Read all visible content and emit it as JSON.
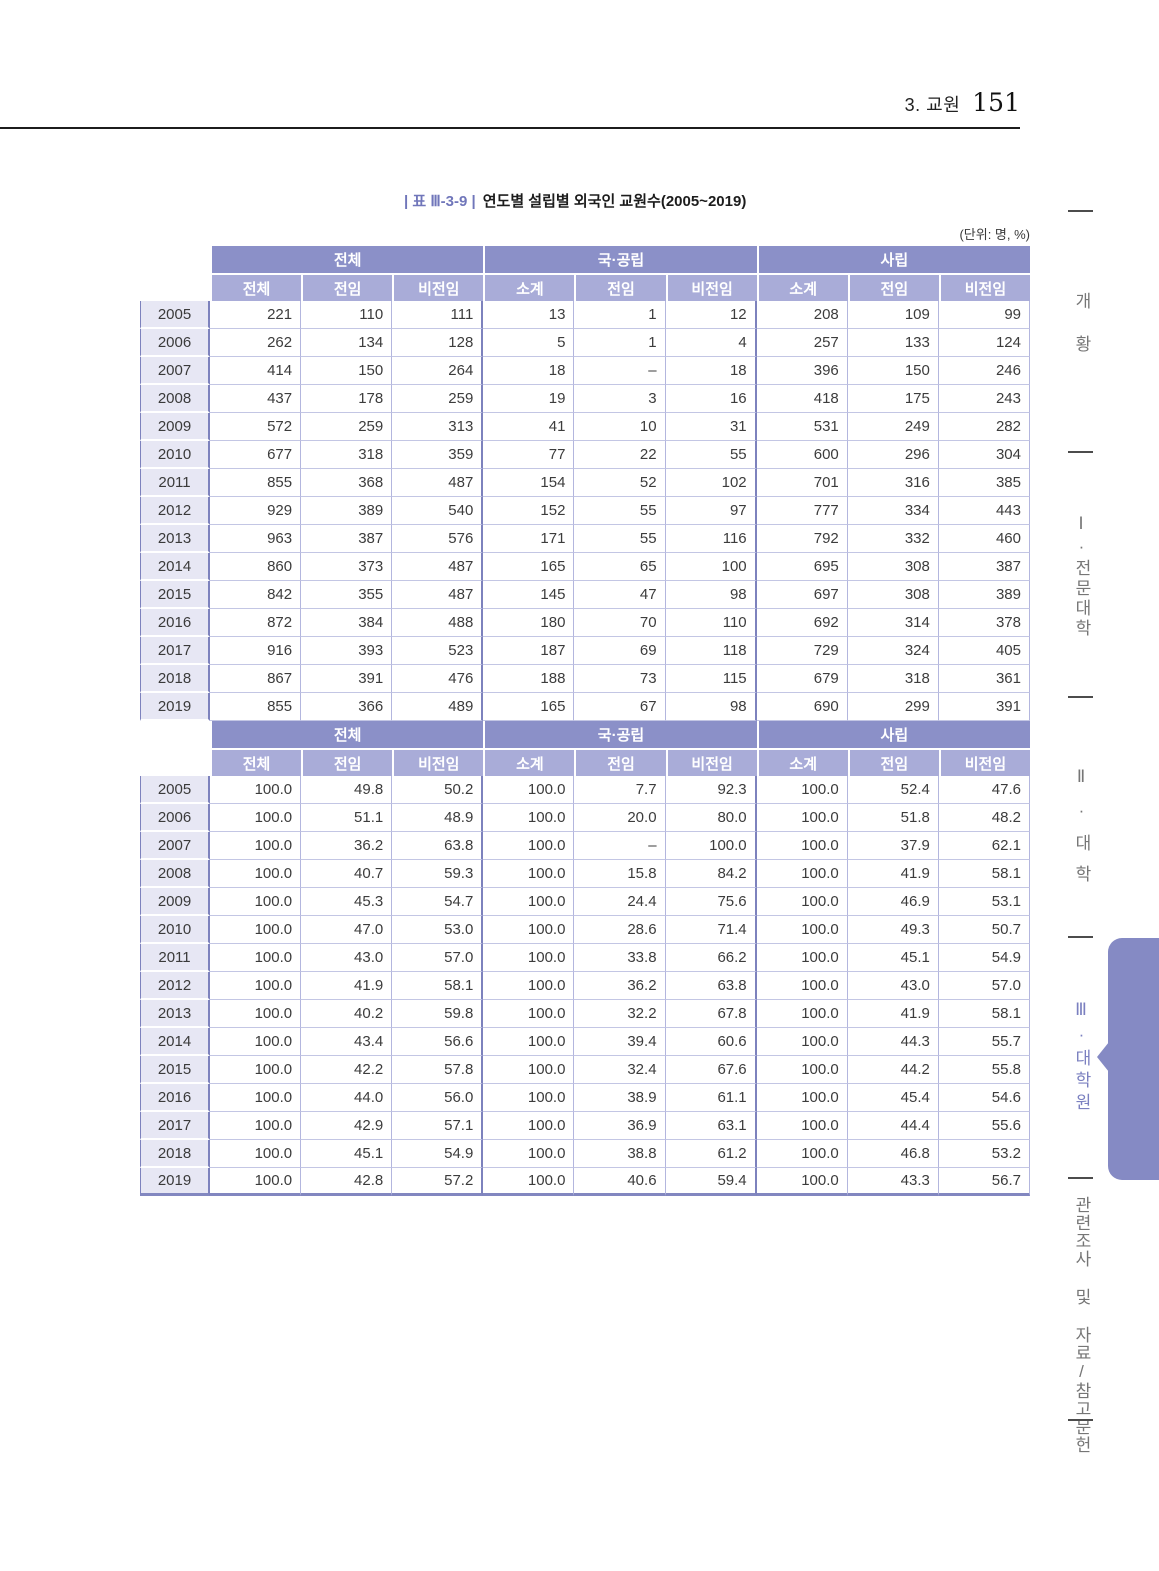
{
  "page_header": {
    "section_label": "3. 교원",
    "page_number": "151"
  },
  "table_caption": {
    "tag": "| 표 Ⅲ-3-9 |",
    "title": "연도별 설립별 외국인 교원수(2005~2019)",
    "unit_note": "(단위: 명, %)"
  },
  "tables": {
    "group_headers": [
      "전체",
      "국·공립",
      "사립"
    ],
    "sub_headers": [
      "전체",
      "전임",
      "비전임",
      "소계",
      "전임",
      "비전임",
      "소계",
      "전임",
      "비전임"
    ],
    "counts": [
      {
        "year": "2005",
        "values": [
          "221",
          "110",
          "111",
          "13",
          "1",
          "12",
          "208",
          "109",
          "99"
        ]
      },
      {
        "year": "2006",
        "values": [
          "262",
          "134",
          "128",
          "5",
          "1",
          "4",
          "257",
          "133",
          "124"
        ]
      },
      {
        "year": "2007",
        "values": [
          "414",
          "150",
          "264",
          "18",
          "–",
          "18",
          "396",
          "150",
          "246"
        ]
      },
      {
        "year": "2008",
        "values": [
          "437",
          "178",
          "259",
          "19",
          "3",
          "16",
          "418",
          "175",
          "243"
        ]
      },
      {
        "year": "2009",
        "values": [
          "572",
          "259",
          "313",
          "41",
          "10",
          "31",
          "531",
          "249",
          "282"
        ]
      },
      {
        "year": "2010",
        "values": [
          "677",
          "318",
          "359",
          "77",
          "22",
          "55",
          "600",
          "296",
          "304"
        ]
      },
      {
        "year": "2011",
        "values": [
          "855",
          "368",
          "487",
          "154",
          "52",
          "102",
          "701",
          "316",
          "385"
        ]
      },
      {
        "year": "2012",
        "values": [
          "929",
          "389",
          "540",
          "152",
          "55",
          "97",
          "777",
          "334",
          "443"
        ]
      },
      {
        "year": "2013",
        "values": [
          "963",
          "387",
          "576",
          "171",
          "55",
          "116",
          "792",
          "332",
          "460"
        ]
      },
      {
        "year": "2014",
        "values": [
          "860",
          "373",
          "487",
          "165",
          "65",
          "100",
          "695",
          "308",
          "387"
        ]
      },
      {
        "year": "2015",
        "values": [
          "842",
          "355",
          "487",
          "145",
          "47",
          "98",
          "697",
          "308",
          "389"
        ]
      },
      {
        "year": "2016",
        "values": [
          "872",
          "384",
          "488",
          "180",
          "70",
          "110",
          "692",
          "314",
          "378"
        ]
      },
      {
        "year": "2017",
        "values": [
          "916",
          "393",
          "523",
          "187",
          "69",
          "118",
          "729",
          "324",
          "405"
        ]
      },
      {
        "year": "2018",
        "values": [
          "867",
          "391",
          "476",
          "188",
          "73",
          "115",
          "679",
          "318",
          "361"
        ]
      },
      {
        "year": "2019",
        "values": [
          "855",
          "366",
          "489",
          "165",
          "67",
          "98",
          "690",
          "299",
          "391"
        ]
      }
    ],
    "percents": [
      {
        "year": "2005",
        "values": [
          "100.0",
          "49.8",
          "50.2",
          "100.0",
          "7.7",
          "92.3",
          "100.0",
          "52.4",
          "47.6"
        ]
      },
      {
        "year": "2006",
        "values": [
          "100.0",
          "51.1",
          "48.9",
          "100.0",
          "20.0",
          "80.0",
          "100.0",
          "51.8",
          "48.2"
        ]
      },
      {
        "year": "2007",
        "values": [
          "100.0",
          "36.2",
          "63.8",
          "100.0",
          "–",
          "100.0",
          "100.0",
          "37.9",
          "62.1"
        ]
      },
      {
        "year": "2008",
        "values": [
          "100.0",
          "40.7",
          "59.3",
          "100.0",
          "15.8",
          "84.2",
          "100.0",
          "41.9",
          "58.1"
        ]
      },
      {
        "year": "2009",
        "values": [
          "100.0",
          "45.3",
          "54.7",
          "100.0",
          "24.4",
          "75.6",
          "100.0",
          "46.9",
          "53.1"
        ]
      },
      {
        "year": "2010",
        "values": [
          "100.0",
          "47.0",
          "53.0",
          "100.0",
          "28.6",
          "71.4",
          "100.0",
          "49.3",
          "50.7"
        ]
      },
      {
        "year": "2011",
        "values": [
          "100.0",
          "43.0",
          "57.0",
          "100.0",
          "33.8",
          "66.2",
          "100.0",
          "45.1",
          "54.9"
        ]
      },
      {
        "year": "2012",
        "values": [
          "100.0",
          "41.9",
          "58.1",
          "100.0",
          "36.2",
          "63.8",
          "100.0",
          "43.0",
          "57.0"
        ]
      },
      {
        "year": "2013",
        "values": [
          "100.0",
          "40.2",
          "59.8",
          "100.0",
          "32.2",
          "67.8",
          "100.0",
          "41.9",
          "58.1"
        ]
      },
      {
        "year": "2014",
        "values": [
          "100.0",
          "43.4",
          "56.6",
          "100.0",
          "39.4",
          "60.6",
          "100.0",
          "44.3",
          "55.7"
        ]
      },
      {
        "year": "2015",
        "values": [
          "100.0",
          "42.2",
          "57.8",
          "100.0",
          "32.4",
          "67.6",
          "100.0",
          "44.2",
          "55.8"
        ]
      },
      {
        "year": "2016",
        "values": [
          "100.0",
          "44.0",
          "56.0",
          "100.0",
          "38.9",
          "61.1",
          "100.0",
          "45.4",
          "54.6"
        ]
      },
      {
        "year": "2017",
        "values": [
          "100.0",
          "42.9",
          "57.1",
          "100.0",
          "36.9",
          "63.1",
          "100.0",
          "44.4",
          "55.6"
        ]
      },
      {
        "year": "2018",
        "values": [
          "100.0",
          "45.1",
          "54.9",
          "100.0",
          "38.8",
          "61.2",
          "100.0",
          "46.8",
          "53.2"
        ]
      },
      {
        "year": "2019",
        "values": [
          "100.0",
          "42.8",
          "57.2",
          "100.0",
          "40.6",
          "59.4",
          "100.0",
          "43.3",
          "56.7"
        ]
      }
    ]
  },
  "sidebar": {
    "items": [
      {
        "label": "개황",
        "active": false
      },
      {
        "label": "Ⅰ·전문대학",
        "active": false
      },
      {
        "label": "Ⅱ·대학",
        "active": false
      },
      {
        "label": "Ⅲ·대학원",
        "active": true
      },
      {
        "label": "관련조사 및 자료/참고문헌",
        "active": false
      }
    ]
  },
  "colors": {
    "header_group": "#8b90c8",
    "header_sub": "#a9acd8",
    "year_cell": "#e7e7f4",
    "border_dark": "#7d82bd",
    "border_light": "#b3b6de",
    "accent_caption": "#7076ba",
    "tab_purple": "#858ac4"
  }
}
